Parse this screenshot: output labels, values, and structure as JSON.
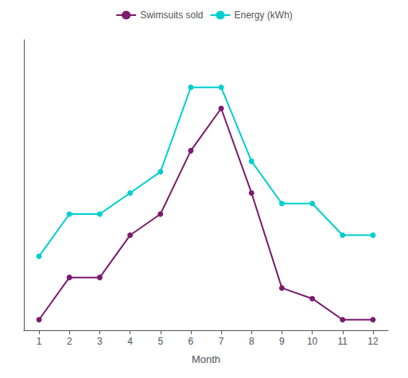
{
  "chart_data": {
    "type": "line",
    "x": [
      1,
      2,
      3,
      4,
      5,
      6,
      7,
      8,
      9,
      10,
      11,
      12
    ],
    "series": [
      {
        "name": "Swimsuits sold",
        "color": "#7b1c6e",
        "values": [
          2,
          10,
          10,
          18,
          22,
          34,
          42,
          26,
          8,
          6,
          2,
          2
        ]
      },
      {
        "name": "Energy (kWh)",
        "color": "#00cece",
        "values": [
          14,
          22,
          22,
          26,
          30,
          46,
          46,
          32,
          24,
          24,
          18,
          18
        ]
      }
    ],
    "xlabel": "Month",
    "xlim": [
      0.5,
      12.5
    ],
    "xticks": [
      1,
      2,
      3,
      4,
      5,
      6,
      7,
      8,
      9,
      10,
      11,
      12
    ],
    "ylim": [
      0,
      55
    ],
    "tick_labels": "x",
    "grid": false,
    "legend": "top",
    "marker": "circle"
  }
}
